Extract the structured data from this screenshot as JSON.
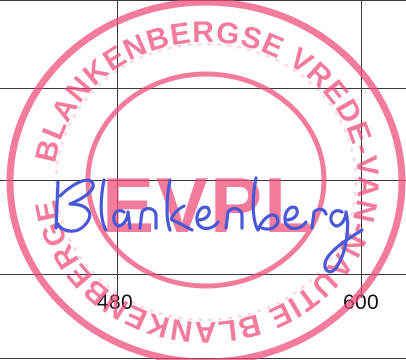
{
  "sheet": {
    "column_labels": [
      "480",
      "600"
    ],
    "line_color": "#3a3a3a"
  },
  "stamp": {
    "outer_text": "BLANKENBERGSE VREDE-VAN-NAUTIE BLANKENBERGE AM. BR.",
    "center_text": "EVPL",
    "ink_color": "#ef4a78"
  },
  "signature": {
    "text": "Blankenberg",
    "ink_color": "#4a58d8"
  }
}
